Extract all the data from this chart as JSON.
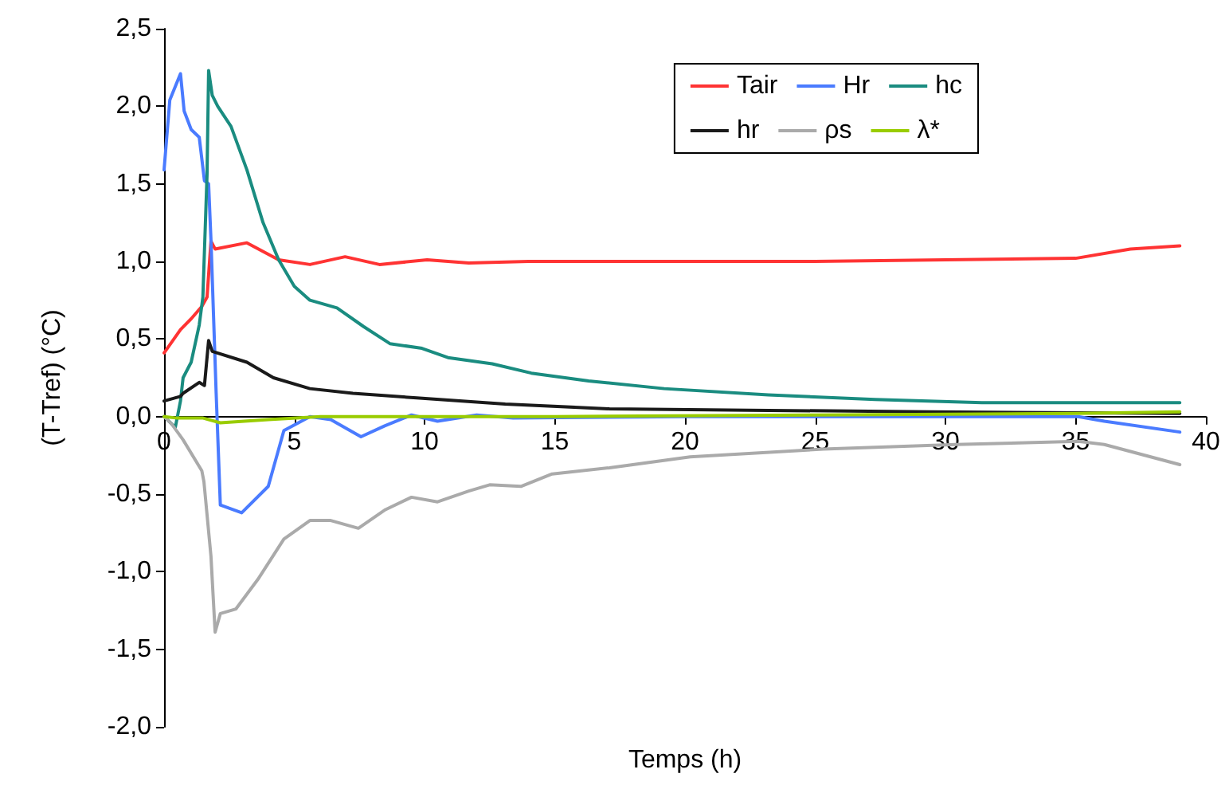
{
  "chart_data": {
    "type": "line",
    "xlabel": "Temps (h)",
    "ylabel": "(T-Tref) (°C)",
    "xlim": [
      0,
      40
    ],
    "xticks": [
      0,
      5,
      10,
      15,
      20,
      25,
      30,
      35,
      40
    ],
    "ylim": [
      -2,
      2.5
    ],
    "yticks": [
      {
        "value": -2,
        "label": "-2,0"
      },
      {
        "value": -1.5,
        "label": "-1,5"
      },
      {
        "value": -1,
        "label": "-1,0"
      },
      {
        "value": -0.5,
        "label": "-0,5"
      },
      {
        "value": 0,
        "label": "0,0"
      },
      {
        "value": 0.5,
        "label": "0,5"
      },
      {
        "value": 1,
        "label": "1,0"
      },
      {
        "value": 1.5,
        "label": "1,5"
      },
      {
        "value": 2,
        "label": "2,0"
      },
      {
        "value": 2.5,
        "label": "2,5"
      }
    ],
    "grid": false,
    "legend": "top right",
    "marker": "none",
    "line_style": "solid",
    "series": [
      {
        "name": "Tair",
        "color": "#ff3333",
        "x": [
          0,
          0.63,
          1.04,
          1.45,
          1.65,
          1.8,
          1.96,
          3.18,
          4.4,
          5.6,
          6.95,
          8.27,
          10.1,
          11.7,
          14,
          20,
          25,
          30,
          35,
          37.1,
          39
        ],
        "values": [
          0.41,
          0.56,
          0.63,
          0.71,
          0.77,
          1.13,
          1.08,
          1.12,
          1.01,
          0.98,
          1.03,
          0.98,
          1.01,
          0.99,
          1.0,
          1.0,
          1.0,
          1.01,
          1.02,
          1.08,
          1.1
        ]
      },
      {
        "name": "Hr",
        "color": "#4a7bff",
        "x": [
          0,
          0.22,
          0.63,
          0.77,
          1.04,
          1.35,
          1.55,
          1.71,
          1.8,
          2.0,
          2.16,
          2.98,
          4.0,
          4.6,
          5.6,
          6.4,
          7.56,
          8.47,
          9.5,
          10.5,
          12,
          13.4,
          20,
          30,
          35.1,
          36.1,
          39
        ],
        "values": [
          1.59,
          2.04,
          2.21,
          1.97,
          1.85,
          1.8,
          1.52,
          1.5,
          1.14,
          0.15,
          -0.57,
          -0.62,
          -0.45,
          -0.09,
          0,
          -0.02,
          -0.13,
          -0.06,
          0.01,
          -0.03,
          0.01,
          -0.01,
          0,
          0,
          0,
          -0.03,
          -0.1
        ]
      },
      {
        "name": "hc",
        "color": "#1a8c80",
        "x": [
          0,
          0.43,
          0.63,
          0.73,
          1.04,
          1.35,
          1.49,
          1.65,
          1.71,
          1.85,
          2.06,
          2.57,
          3.18,
          3.8,
          4.4,
          5.0,
          5.6,
          6.64,
          7.66,
          8.67,
          9.9,
          10.9,
          12.6,
          14.1,
          16.3,
          19.2,
          23.2,
          27.3,
          31.4,
          35,
          39
        ],
        "values": [
          0,
          -0.07,
          0.1,
          0.25,
          0.35,
          0.59,
          0.77,
          1.56,
          2.23,
          2.07,
          2.0,
          1.87,
          1.59,
          1.25,
          1.01,
          0.84,
          0.75,
          0.7,
          0.58,
          0.47,
          0.44,
          0.38,
          0.34,
          0.28,
          0.23,
          0.18,
          0.14,
          0.11,
          0.09,
          0.09,
          0.09
        ]
      },
      {
        "name": "hr",
        "color": "#1a1a1a",
        "x": [
          0,
          0.63,
          0.73,
          1.35,
          1.55,
          1.71,
          1.85,
          3.18,
          4.2,
          5.6,
          7.25,
          9.7,
          13.1,
          17.1,
          23.2,
          29.4,
          39
        ],
        "values": [
          0.1,
          0.13,
          0.15,
          0.22,
          0.2,
          0.49,
          0.42,
          0.35,
          0.25,
          0.18,
          0.15,
          0.12,
          0.08,
          0.05,
          0.04,
          0.03,
          0.02
        ]
      },
      {
        "name": "ρs",
        "color": "#aaaaaa",
        "x": [
          0,
          0.3,
          0.73,
          1.45,
          1.53,
          1.8,
          1.96,
          2.16,
          2.76,
          3.6,
          4.6,
          5.6,
          6.4,
          7.46,
          8.5,
          9.5,
          10.5,
          11.7,
          12.5,
          13.7,
          14.9,
          17.1,
          20.2,
          25.3,
          30.4,
          35.1,
          36.1,
          39
        ],
        "values": [
          0,
          -0.05,
          -0.15,
          -0.35,
          -0.42,
          -0.9,
          -1.39,
          -1.27,
          -1.24,
          -1.05,
          -0.79,
          -0.67,
          -0.67,
          -0.72,
          -0.6,
          -0.52,
          -0.55,
          -0.48,
          -0.44,
          -0.45,
          -0.37,
          -0.33,
          -0.26,
          -0.21,
          -0.18,
          -0.16,
          -0.18,
          -0.31
        ]
      },
      {
        "name": "λ*",
        "color": "#99cc00",
        "x": [
          0,
          0.5,
          1.5,
          2.16,
          4,
          6,
          15,
          25,
          35,
          39
        ],
        "values": [
          0,
          -0.01,
          -0.01,
          -0.04,
          -0.02,
          0,
          0,
          0.01,
          0.02,
          0.03
        ]
      }
    ]
  }
}
